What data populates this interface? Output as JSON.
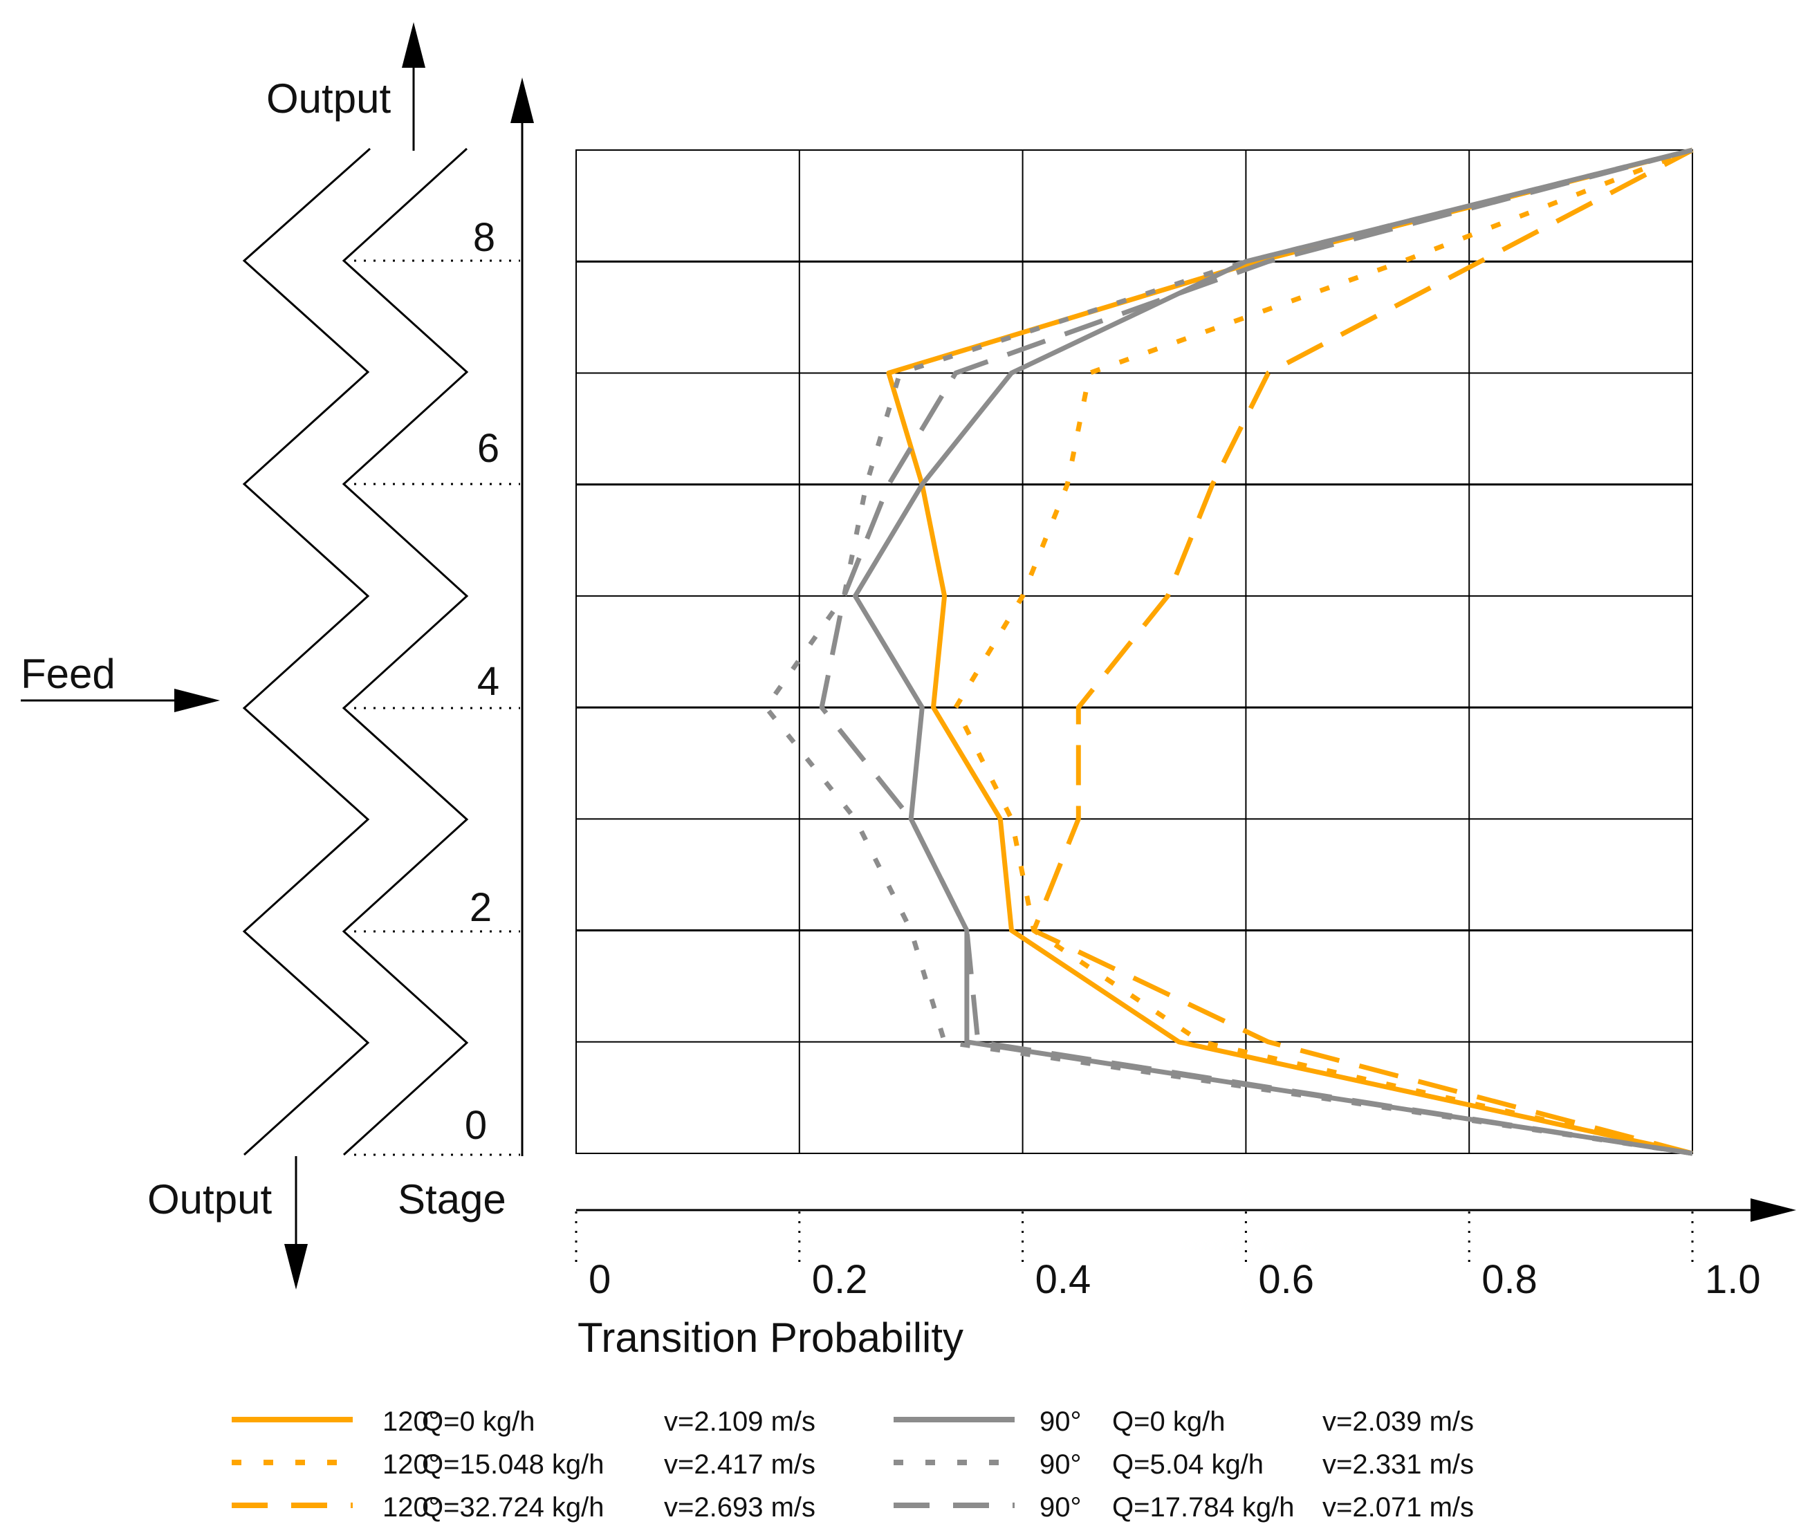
{
  "colors": {
    "orange": "#FFA500",
    "gray": "#8C8C8C",
    "grid": "#000000",
    "text": "#111111"
  },
  "schematic": {
    "output_top_label": "Output",
    "output_bottom_label": "Output",
    "feed_label": "Feed",
    "stage_axis_label": "Stage",
    "stage_ticks": [
      "0",
      "2",
      "4",
      "6",
      "8"
    ]
  },
  "chart_data": {
    "type": "line",
    "title": "",
    "xlabel": "Transition Probability",
    "ylabel": "Stage",
    "xlim": [
      0,
      1.0
    ],
    "ylim": [
      0,
      9
    ],
    "x_tick_labels": [
      "0",
      "0.2",
      "0.4",
      "0.6",
      "0.8",
      "1.0"
    ],
    "x_ticks": [
      0,
      0.2,
      0.4,
      0.6,
      0.8,
      1.0
    ],
    "grid": true,
    "legend_position": "bottom",
    "series": [
      {
        "name": "120° Q=0 kg/h",
        "angle": "120°",
        "q_label": "Q=0 kg/h",
        "v_label": "v=2.109 m/s",
        "color": "orange",
        "dash": "solid",
        "points": [
          [
            1.0,
            0
          ],
          [
            0.54,
            1
          ],
          [
            0.39,
            2
          ],
          [
            0.38,
            3
          ],
          [
            0.32,
            4
          ],
          [
            0.33,
            5
          ],
          [
            0.31,
            6
          ],
          [
            0.28,
            7
          ],
          [
            0.61,
            8
          ],
          [
            1.0,
            9
          ]
        ]
      },
      {
        "name": "120° Q=15.048 kg/h",
        "angle": "120°",
        "q_label": "Q=15.048 kg/h",
        "v_label": "v=2.417 m/s",
        "color": "orange",
        "dash": "dotted",
        "points": [
          [
            1.0,
            0
          ],
          [
            0.56,
            1
          ],
          [
            0.41,
            2
          ],
          [
            0.39,
            3
          ],
          [
            0.34,
            4
          ],
          [
            0.4,
            5
          ],
          [
            0.44,
            6
          ],
          [
            0.46,
            7
          ],
          [
            0.74,
            8
          ],
          [
            1.0,
            9
          ]
        ]
      },
      {
        "name": "120° Q=32.724 kg/h",
        "angle": "120°",
        "q_label": "Q=32.724 kg/h",
        "v_label": "v=2.693 m/s",
        "color": "orange",
        "dash": "dashed",
        "points": [
          [
            1.0,
            0
          ],
          [
            0.62,
            1
          ],
          [
            0.41,
            2
          ],
          [
            0.45,
            3
          ],
          [
            0.45,
            4
          ],
          [
            0.53,
            5
          ],
          [
            0.57,
            6
          ],
          [
            0.62,
            7
          ],
          [
            0.81,
            8
          ],
          [
            1.0,
            9
          ]
        ]
      },
      {
        "name": "90° Q=0 kg/h",
        "angle": "90°",
        "q_label": "Q=0 kg/h",
        "v_label": "v=2.039 m/s",
        "color": "gray",
        "dash": "solid",
        "points": [
          [
            1.0,
            0
          ],
          [
            0.35,
            1
          ],
          [
            0.35,
            2
          ],
          [
            0.3,
            3
          ],
          [
            0.31,
            4
          ],
          [
            0.25,
            5
          ],
          [
            0.31,
            6
          ],
          [
            0.39,
            7
          ],
          [
            0.6,
            8
          ],
          [
            1.0,
            9
          ]
        ]
      },
      {
        "name": "90° Q=5.04 kg/h",
        "angle": "90°",
        "q_label": "Q=5.04 kg/h",
        "v_label": "v=2.331 m/s",
        "color": "gray",
        "dash": "dotted",
        "points": [
          [
            1.0,
            0
          ],
          [
            0.33,
            1
          ],
          [
            0.3,
            2
          ],
          [
            0.25,
            3
          ],
          [
            0.17,
            4
          ],
          [
            0.24,
            5
          ],
          [
            0.26,
            6
          ],
          [
            0.29,
            7
          ],
          [
            0.6,
            8
          ],
          [
            1.0,
            9
          ]
        ]
      },
      {
        "name": "90° Q=17.784 kg/h",
        "angle": "90°",
        "q_label": "Q=17.784 kg/h",
        "v_label": "v=2.071 m/s",
        "color": "gray",
        "dash": "dashed",
        "points": [
          [
            1.0,
            0
          ],
          [
            0.36,
            1
          ],
          [
            0.35,
            2
          ],
          [
            0.3,
            3
          ],
          [
            0.22,
            4
          ],
          [
            0.24,
            5
          ],
          [
            0.28,
            6
          ],
          [
            0.34,
            7
          ],
          [
            0.62,
            8
          ],
          [
            1.0,
            9
          ]
        ]
      }
    ]
  }
}
